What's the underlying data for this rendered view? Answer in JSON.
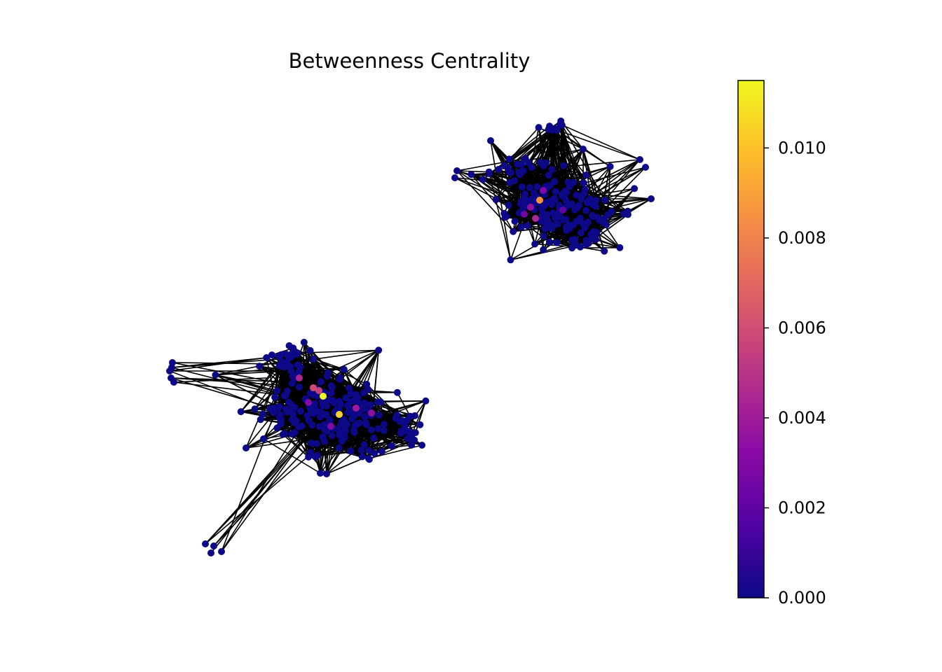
{
  "title": "Betweenness Centrality",
  "colorbar": {
    "colormap": "plasma",
    "min": 0.0,
    "max": 0.0115,
    "ticks": [
      {
        "value": 0.0,
        "label": "0.000"
      },
      {
        "value": 0.002,
        "label": "0.002"
      },
      {
        "value": 0.004,
        "label": "0.004"
      },
      {
        "value": 0.006,
        "label": "0.006"
      },
      {
        "value": 0.008,
        "label": "0.008"
      },
      {
        "value": 0.01,
        "label": "0.010"
      }
    ],
    "stops": [
      "#0d0887",
      "#5302a3",
      "#8b0aa5",
      "#b83289",
      "#db5c68",
      "#f48849",
      "#febd2a",
      "#f0f921"
    ]
  },
  "graph": {
    "edge_color": "#000000",
    "node_default_color": "#0d0887",
    "components": 2
  }
}
